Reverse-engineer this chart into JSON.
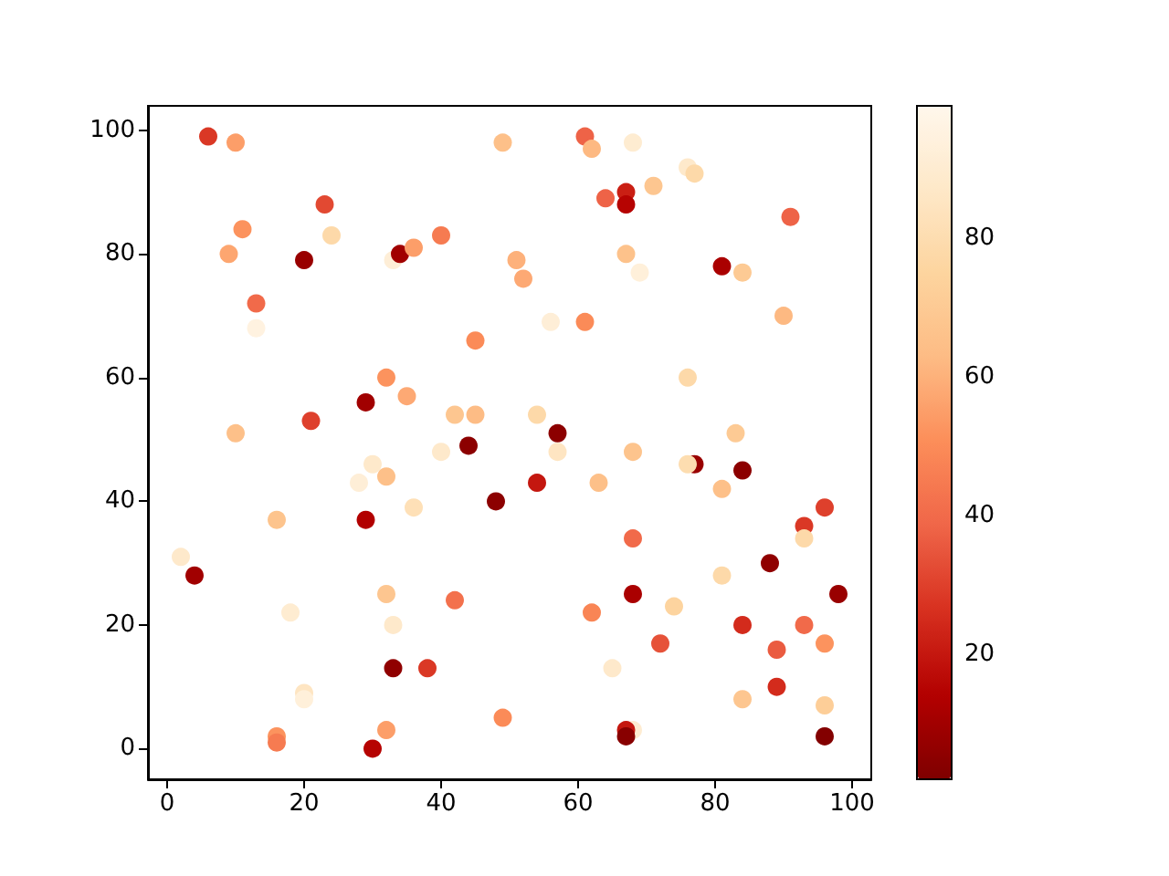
{
  "chart_data": {
    "type": "scatter",
    "marker": "circle",
    "x": [
      6,
      10,
      49,
      23,
      11,
      24,
      9,
      20,
      33,
      34,
      36,
      40,
      51,
      52,
      13,
      13,
      45,
      32,
      29,
      35,
      21,
      42,
      45,
      10,
      44,
      40,
      61,
      62,
      68,
      76,
      77,
      71,
      64,
      67,
      67,
      91,
      67,
      69,
      81,
      84,
      56,
      61,
      90,
      76,
      54,
      57,
      57,
      83,
      68,
      77,
      76,
      84,
      81,
      54,
      63,
      48,
      96,
      93,
      93,
      68,
      88,
      81,
      68,
      98,
      74,
      62,
      84,
      93,
      96,
      72,
      89,
      65,
      89,
      84,
      96,
      68,
      67,
      67,
      96,
      49,
      30,
      32,
      28,
      36,
      16,
      29,
      2,
      4,
      32,
      42,
      18,
      33,
      33,
      38,
      20,
      20,
      16,
      16,
      32,
      30
    ],
    "values": [
      99,
      98,
      98,
      88,
      84,
      83,
      80,
      79,
      79,
      80,
      81,
      83,
      79,
      76,
      72,
      68,
      66,
      60,
      56,
      57,
      53,
      54,
      54,
      51,
      49,
      48,
      99,
      97,
      98,
      94,
      93,
      91,
      89,
      90,
      88,
      86,
      80,
      77,
      78,
      77,
      69,
      69,
      70,
      60,
      54,
      51,
      48,
      51,
      48,
      46,
      46,
      45,
      42,
      43,
      43,
      40,
      39,
      36,
      34,
      34,
      30,
      28,
      25,
      25,
      23,
      22,
      20,
      20,
      17,
      17,
      16,
      13,
      10,
      8,
      7,
      3,
      3,
      2,
      2,
      5,
      46,
      44,
      43,
      39,
      37,
      37,
      31,
      28,
      25,
      24,
      22,
      20,
      13,
      13,
      9,
      8,
      2,
      1,
      3,
      0
    ],
    "cvalues": [
      28,
      55,
      65,
      32,
      52,
      78,
      57,
      8,
      92,
      10,
      55,
      45,
      60,
      58,
      40,
      95,
      50,
      52,
      10,
      58,
      30,
      68,
      63,
      65,
      5,
      88,
      38,
      62,
      90,
      88,
      78,
      68,
      38,
      22,
      15,
      38,
      66,
      93,
      12,
      70,
      92,
      50,
      62,
      78,
      78,
      5,
      85,
      70,
      67,
      8,
      80,
      5,
      65,
      20,
      65,
      5,
      30,
      28,
      78,
      40,
      6,
      78,
      12,
      8,
      75,
      48,
      25,
      40,
      52,
      34,
      36,
      88,
      25,
      68,
      72,
      90,
      20,
      4,
      3,
      50,
      88,
      65,
      92,
      82,
      67,
      14,
      88,
      10,
      68,
      42,
      90,
      88,
      6,
      28,
      85,
      93,
      52,
      45,
      55,
      15
    ],
    "clim": [
      2,
      99
    ],
    "cticks": [
      20,
      40,
      60,
      80
    ],
    "xlim": [
      -2.8,
      102.8
    ],
    "ylim": [
      -4.95,
      103.95
    ],
    "xticks": [
      0,
      20,
      40,
      60,
      80,
      100
    ],
    "yticks": [
      0,
      20,
      40,
      60,
      80,
      100
    ]
  }
}
